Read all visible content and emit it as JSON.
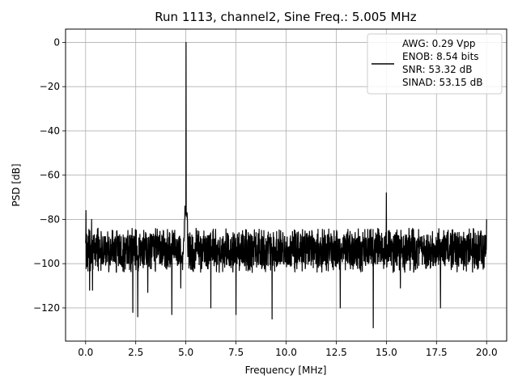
{
  "chart_data": {
    "type": "line",
    "title": "Run 1113, channel2, Sine Freq.: 5.005 MHz",
    "xlabel": "Frequency [MHz]",
    "ylabel": "PSD [dB]",
    "xlim": [
      -1.0,
      21.0
    ],
    "ylim": [
      -135,
      6
    ],
    "xticks": [
      0.0,
      2.5,
      5.0,
      7.5,
      10.0,
      12.5,
      15.0,
      17.5,
      20.0
    ],
    "xtick_labels": [
      "0.0",
      "2.5",
      "5.0",
      "7.5",
      "10.0",
      "12.5",
      "15.0",
      "17.5",
      "20.0"
    ],
    "yticks": [
      0,
      -20,
      -40,
      -60,
      -80,
      -100,
      -120
    ],
    "ytick_labels": [
      "0",
      "−20",
      "−40",
      "−60",
      "−80",
      "−100",
      "−120"
    ],
    "grid": true,
    "legend_position": "top-right",
    "legend_lines": [
      "AWG: 0.29 Vpp",
      "ENOB: 8.54 bits",
      "SNR: 53.32 dB",
      "SINAD: 53.15 dB"
    ],
    "line_color": "#000000",
    "series": [
      {
        "noise_floor_range_mhz": [
          0.0,
          20.0
        ],
        "noise_floor_db": [
          -101,
          -84
        ],
        "noise_floor_mean_db": -94,
        "peaks": [
          {
            "x": 0.02,
            "y": -76
          },
          {
            "x": 0.3,
            "y": -80
          },
          {
            "x": 5.005,
            "y": 0
          },
          {
            "x": 4.95,
            "y": -74
          },
          {
            "x": 5.06,
            "y": -77
          },
          {
            "x": 15.0,
            "y": -68
          },
          {
            "x": 20.0,
            "y": -80
          }
        ],
        "dips": [
          {
            "x": 0.2,
            "y": -112
          },
          {
            "x": 0.35,
            "y": -112
          },
          {
            "x": 2.35,
            "y": -122
          },
          {
            "x": 2.6,
            "y": -124
          },
          {
            "x": 3.1,
            "y": -113
          },
          {
            "x": 4.3,
            "y": -123
          },
          {
            "x": 4.75,
            "y": -111
          },
          {
            "x": 6.25,
            "y": -120
          },
          {
            "x": 7.5,
            "y": -123
          },
          {
            "x": 9.3,
            "y": -125
          },
          {
            "x": 12.7,
            "y": -120
          },
          {
            "x": 14.35,
            "y": -129
          },
          {
            "x": 15.7,
            "y": -111
          },
          {
            "x": 17.7,
            "y": -120
          }
        ]
      }
    ]
  }
}
